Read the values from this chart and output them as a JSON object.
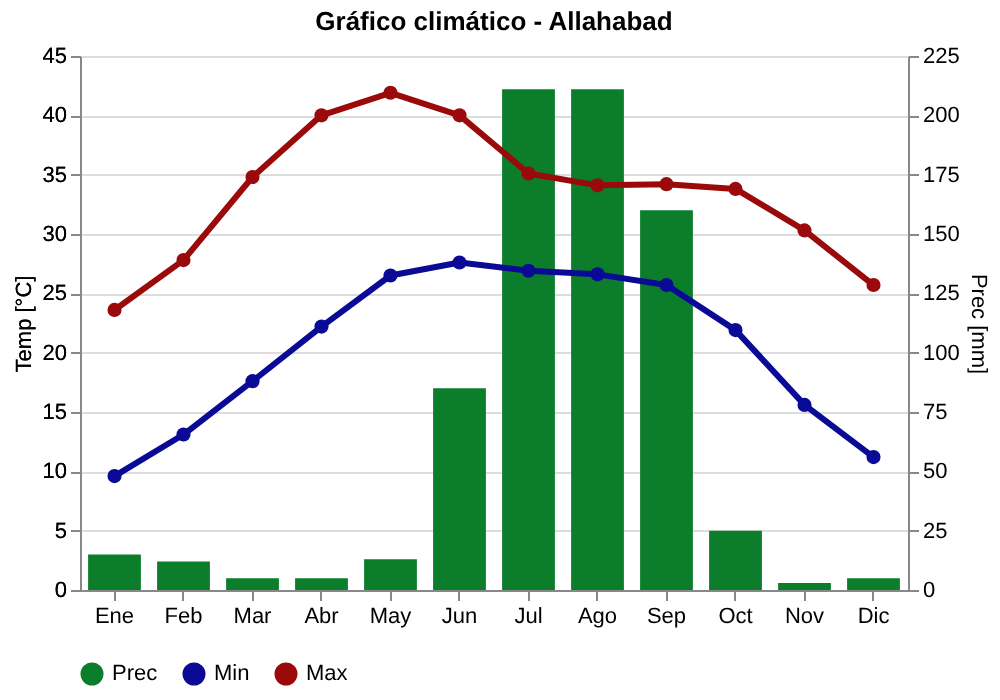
{
  "chart_data": {
    "type": "line",
    "title": "Gráfico climático - Allahabad",
    "ylabel": "Temp [°C]",
    "y2label": "Prec [mm]",
    "categories": [
      "Ene",
      "Feb",
      "Mar",
      "Abr",
      "May",
      "Jun",
      "Jul",
      "Ago",
      "Sep",
      "Oct",
      "Nov",
      "Dic"
    ],
    "series": [
      {
        "name": "Prec",
        "type": "bar",
        "axis": "y2",
        "color": "#0b7d2b",
        "values": [
          15,
          12,
          5,
          5,
          13,
          85,
          211,
          211,
          160,
          25,
          3,
          5
        ]
      },
      {
        "name": "Min",
        "color": "#0a0a96",
        "values": [
          9.6,
          13.1,
          17.6,
          22.2,
          26.5,
          27.6,
          26.9,
          26.6,
          25.7,
          21.9,
          15.6,
          11.2
        ]
      },
      {
        "name": "Max",
        "color": "#9b0a0a",
        "values": [
          23.6,
          27.8,
          34.8,
          40.0,
          41.9,
          40.0,
          35.1,
          34.1,
          34.2,
          33.8,
          30.3,
          25.7
        ]
      }
    ],
    "ylim": [
      0,
      45
    ],
    "yticks": [
      0,
      5,
      10,
      15,
      20,
      25,
      30,
      35,
      40,
      45
    ],
    "y2lim": [
      0,
      225
    ],
    "y2ticks": [
      0,
      25,
      50,
      75,
      100,
      125,
      150,
      175,
      200,
      225
    ],
    "grid": "y",
    "legend": "bottom",
    "marker": "circle",
    "line_style": "solid"
  }
}
